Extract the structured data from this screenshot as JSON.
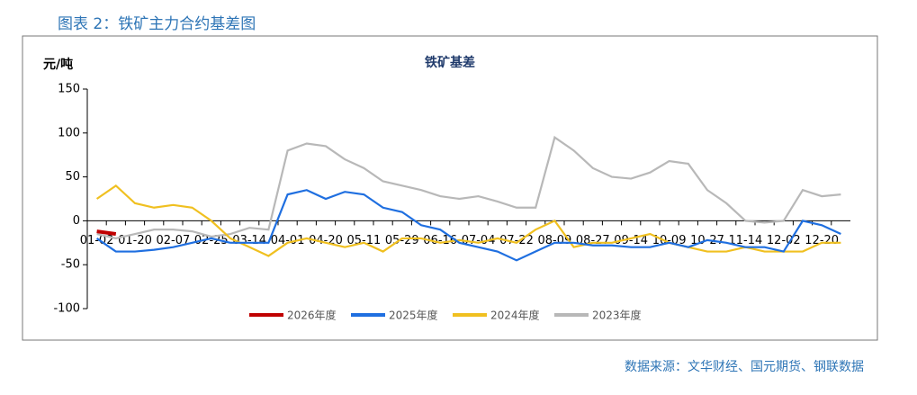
{
  "header": {
    "title": "图表 2：铁矿主力合约基差图"
  },
  "source": "数据来源：文华财经、国元期货、钢联数据",
  "chart_data": {
    "type": "line",
    "title": "铁矿基差",
    "y_label": "元/吨",
    "categories": [
      "01-02",
      null,
      "01-20",
      null,
      "02-07",
      null,
      "02-25",
      null,
      "03-14",
      null,
      "04-01",
      null,
      "04-20",
      null,
      "05-11",
      null,
      "05-29",
      null,
      "06-16",
      null,
      "07-04",
      null,
      "07-22",
      null,
      "08-09",
      null,
      "08-27",
      null,
      "09-14",
      null,
      "10-09",
      null,
      "10-27",
      null,
      "11-14",
      null,
      "12-02",
      null,
      "12-20",
      null
    ],
    "ylim": [
      -100,
      150
    ],
    "yticks": [
      -100,
      -50,
      0,
      50,
      100,
      150
    ],
    "series": [
      {
        "name": "2026年度",
        "color": "#c00000",
        "values": [
          -12,
          -15,
          null,
          null,
          null,
          null,
          null,
          null,
          null,
          null,
          null,
          null,
          null,
          null,
          null,
          null,
          null,
          null,
          null,
          null,
          null,
          null,
          null,
          null,
          null,
          null,
          null,
          null,
          null,
          null,
          null,
          null,
          null,
          null,
          null,
          null,
          null,
          null,
          null,
          null
        ]
      },
      {
        "name": "2025年度",
        "color": "#1f6fe0",
        "values": [
          -20,
          -35,
          -35,
          -33,
          -30,
          -25,
          -20,
          -25,
          -25,
          -25,
          30,
          35,
          25,
          33,
          30,
          15,
          10,
          -5,
          -10,
          -25,
          -30,
          -35,
          -45,
          -35,
          -25,
          -25,
          -28,
          -28,
          -30,
          -30,
          -25,
          -30,
          -22,
          -25,
          -30,
          -30,
          -35,
          0,
          -5,
          -15
        ]
      },
      {
        "name": "2024年度",
        "color": "#f0c020",
        "values": [
          25,
          40,
          20,
          15,
          18,
          15,
          0,
          -20,
          -30,
          -40,
          -25,
          -20,
          -25,
          -30,
          -25,
          -35,
          -20,
          -20,
          -25,
          -22,
          -25,
          -20,
          -25,
          -10,
          0,
          -30,
          -25,
          -25,
          -20,
          -15,
          -25,
          -30,
          -35,
          -35,
          -30,
          -35,
          -35,
          -35,
          -25,
          -25
        ]
      },
      {
        "name": "2023年度",
        "color": "#b8b8b8",
        "values": [
          -15,
          -20,
          -15,
          -10,
          -10,
          -12,
          -18,
          -15,
          -8,
          -10,
          80,
          88,
          85,
          70,
          60,
          45,
          40,
          35,
          28,
          25,
          28,
          22,
          15,
          15,
          95,
          80,
          60,
          50,
          48,
          55,
          68,
          65,
          35,
          20,
          0,
          -2,
          0,
          35,
          28,
          30
        ]
      }
    ]
  }
}
